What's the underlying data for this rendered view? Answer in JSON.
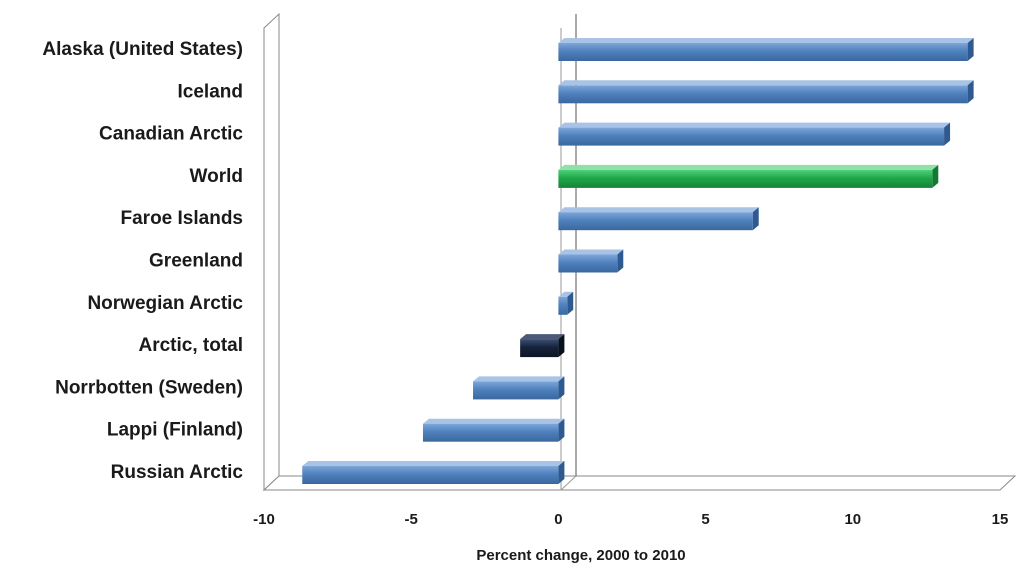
{
  "chart_data": {
    "type": "bar",
    "orientation": "horizontal",
    "categories": [
      "Alaska (United States)",
      "Iceland",
      "Canadian Arctic",
      "World",
      "Faroe Islands",
      "Greenland",
      "Norwegian Arctic",
      "Arctic, total",
      "Norrbotten (Sweden)",
      "Lappi (Finland)",
      "Russian Arctic"
    ],
    "values": [
      13.9,
      13.9,
      13.1,
      12.7,
      6.6,
      2.0,
      0.3,
      -1.3,
      -2.9,
      -4.6,
      -8.7
    ],
    "bar_colors": [
      "#4f81bd",
      "#4f81bd",
      "#4f81bd",
      "#1fa849",
      "#4f81bd",
      "#4f81bd",
      "#4f81bd",
      "#17233a",
      "#4f81bd",
      "#4f81bd",
      "#4f81bd"
    ],
    "title": "",
    "xlabel": "Percent change, 2000 to 2010",
    "ylabel": "",
    "xlim": [
      -10,
      15
    ],
    "xticks": [
      "-10",
      "-5",
      "0",
      "5",
      "10",
      "15"
    ],
    "grid": false,
    "legend": "none"
  }
}
